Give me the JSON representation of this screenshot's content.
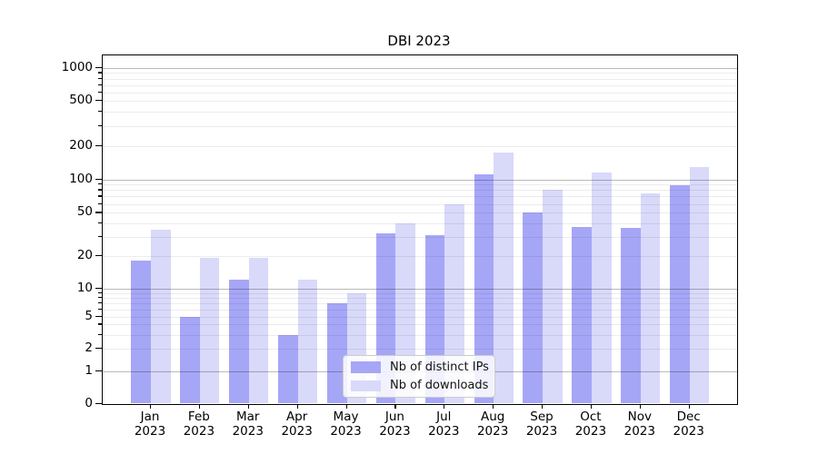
{
  "title": "DBI 2023",
  "chart_data": {
    "type": "bar",
    "title": "DBI 2023",
    "categories": [
      "Jan 2023",
      "Feb 2023",
      "Mar 2023",
      "Apr 2023",
      "May 2023",
      "Jun 2023",
      "Jul 2023",
      "Aug 2023",
      "Sep 2023",
      "Oct 2023",
      "Nov 2023",
      "Dec 2023"
    ],
    "series": [
      {
        "name": "Nb of distinct IPs",
        "color": "#a6a6f7",
        "values": [
          18,
          5,
          12,
          3,
          7,
          32,
          31,
          110,
          50,
          37,
          36,
          88
        ]
      },
      {
        "name": "Nb of downloads",
        "color": "#d9d9fa",
        "values": [
          35,
          19,
          19,
          12,
          9,
          40,
          60,
          175,
          80,
          115,
          75,
          130
        ]
      }
    ],
    "xlabel": "",
    "ylabel": "",
    "yscale": "symlog",
    "yticks": [
      0,
      1,
      2,
      5,
      10,
      20,
      50,
      100,
      200,
      500,
      1000
    ],
    "ylim": [
      0,
      1300
    ],
    "grid": true,
    "legend_position": "lower center"
  }
}
